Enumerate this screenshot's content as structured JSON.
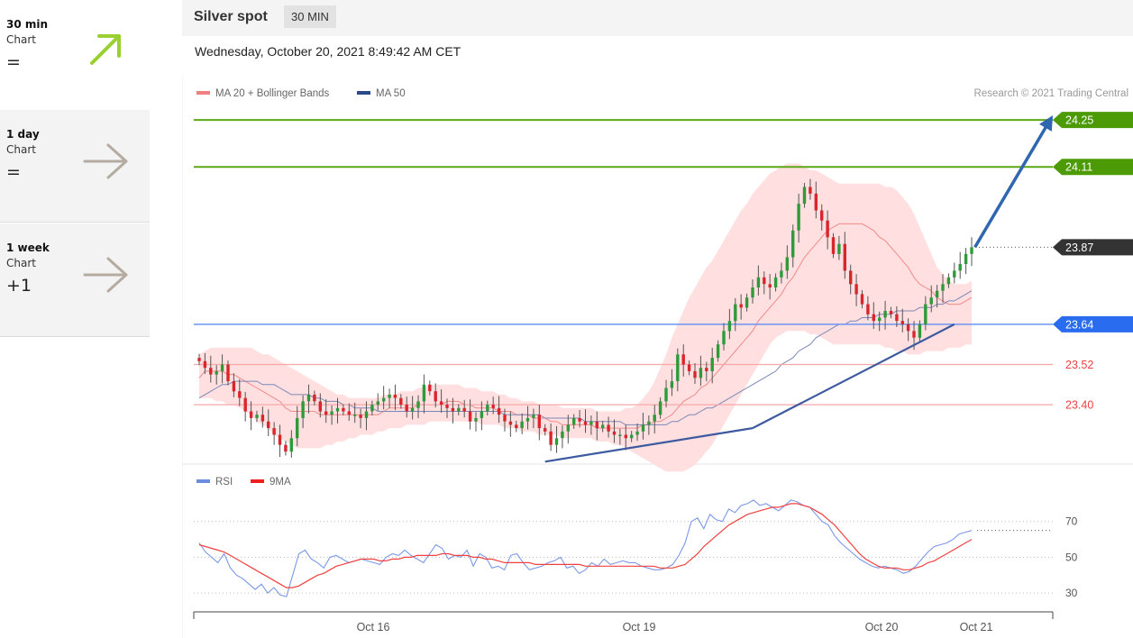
{
  "sidebar": {
    "items": [
      {
        "name": "30 min",
        "sub": "Chart",
        "symbol": "=",
        "arrow_icon": "arrow-up-right-icon",
        "color": "#9ad030"
      },
      {
        "name": "1 day",
        "sub": "Chart",
        "symbol": "=",
        "arrow_icon": "arrow-right-icon",
        "color": "#b4aba1"
      },
      {
        "name": "1 week",
        "sub": "Chart",
        "symbol": "+1",
        "arrow_icon": "arrow-right-icon",
        "color": "#b4aba1"
      }
    ]
  },
  "header": {
    "ticker": "Silver spot",
    "timeframe": "30 MIN"
  },
  "timestamp": "Wednesday, October 20, 2021 8:49:42 AM CET",
  "chart_data": [
    {
      "type": "candlestick",
      "legend": [
        {
          "label": "MA 20 + Bollinger Bands",
          "color": "#f08080"
        },
        {
          "label": "MA 50",
          "color": "#2b4a8c"
        }
      ],
      "copyright": "Research © 2021 Trading Central",
      "x_tick_labels": [
        "Oct 16",
        "Oct 19",
        "Oct 20",
        "Oct 21"
      ],
      "y_range": [
        23.22,
        24.28
      ],
      "levels": [
        {
          "value": 24.25,
          "label": "24.25",
          "kind": "target",
          "color": "#4c9a06"
        },
        {
          "value": 24.11,
          "label": "24.11",
          "kind": "resistance",
          "color": "#4c9a06"
        },
        {
          "value": 23.87,
          "label": "23.87",
          "kind": "last",
          "color": "#333333"
        },
        {
          "value": 23.64,
          "label": "23.64",
          "kind": "pivot",
          "color": "#2a6cf0"
        },
        {
          "value": 23.52,
          "label": "23.52",
          "kind": "support",
          "color": "#f07070"
        },
        {
          "value": 23.4,
          "label": "23.40",
          "kind": "support",
          "color": "#f07070"
        }
      ],
      "close": [
        23.53,
        23.51,
        23.49,
        23.5,
        23.52,
        23.47,
        23.44,
        23.42,
        23.38,
        23.36,
        23.37,
        23.35,
        23.33,
        23.31,
        23.28,
        23.26,
        23.3,
        23.36,
        23.41,
        23.43,
        23.41,
        23.38,
        23.37,
        23.38,
        23.39,
        23.38,
        23.37,
        23.37,
        23.36,
        23.38,
        23.4,
        23.41,
        23.42,
        23.43,
        23.42,
        23.4,
        23.38,
        23.39,
        23.41,
        23.46,
        23.44,
        23.41,
        23.4,
        23.39,
        23.38,
        23.39,
        23.38,
        23.35,
        23.36,
        23.38,
        23.4,
        23.39,
        23.37,
        23.35,
        23.34,
        23.33,
        23.35,
        23.36,
        23.37,
        23.33,
        23.32,
        23.28,
        23.3,
        23.32,
        23.34,
        23.36,
        23.35,
        23.34,
        23.35,
        23.33,
        23.34,
        23.32,
        23.31,
        23.31,
        23.3,
        23.31,
        23.32,
        23.34,
        23.35,
        23.37,
        23.41,
        23.45,
        23.47,
        23.55,
        23.52,
        23.5,
        23.48,
        23.51,
        23.5,
        23.54,
        23.58,
        23.62,
        23.65,
        23.7,
        23.69,
        23.72,
        23.75,
        23.78,
        23.76,
        23.75,
        23.78,
        23.8,
        23.84,
        23.92,
        24.0,
        24.05,
        24.03,
        23.98,
        23.95,
        23.9,
        23.85,
        23.88,
        23.8,
        23.76,
        23.73,
        23.7,
        23.67,
        23.65,
        23.66,
        23.68,
        23.67,
        23.65,
        23.64,
        23.62,
        23.6,
        23.64,
        23.7,
        23.72,
        23.74,
        23.76,
        23.78,
        23.8,
        23.82,
        23.85,
        23.87
      ],
      "ma20": [
        23.48,
        23.5,
        23.5,
        23.5,
        23.5,
        23.49,
        23.49,
        23.48,
        23.47,
        23.46,
        23.45,
        23.44,
        23.43,
        23.42,
        23.41,
        23.39,
        23.38,
        23.38,
        23.38,
        23.38,
        23.38,
        23.37,
        23.37,
        23.37,
        23.37,
        23.37,
        23.37,
        23.37,
        23.37,
        23.37,
        23.37,
        23.37,
        23.38,
        23.39,
        23.39,
        23.39,
        23.39,
        23.39,
        23.4,
        23.4,
        23.4,
        23.4,
        23.4,
        23.41,
        23.41,
        23.41,
        23.4,
        23.4,
        23.39,
        23.39,
        23.39,
        23.39,
        23.38,
        23.38,
        23.38,
        23.37,
        23.37,
        23.37,
        23.36,
        23.36,
        23.36,
        23.35,
        23.35,
        23.34,
        23.34,
        23.34,
        23.34,
        23.34,
        23.34,
        23.33,
        23.33,
        23.33,
        23.33,
        23.33,
        23.33,
        23.33,
        23.33,
        23.34,
        23.34,
        23.35,
        23.35,
        23.36,
        23.37,
        23.39,
        23.41,
        23.42,
        23.43,
        23.45,
        23.46,
        23.48,
        23.5,
        23.52,
        23.54,
        23.56,
        23.58,
        23.6,
        23.62,
        23.65,
        23.67,
        23.69,
        23.71,
        23.73,
        23.76,
        23.78,
        23.81,
        23.84,
        23.86,
        23.88,
        23.9,
        23.92,
        23.93,
        23.94,
        23.94,
        23.94,
        23.94,
        23.94,
        23.93,
        23.92,
        23.9,
        23.89,
        23.87,
        23.85,
        23.83,
        23.81,
        23.78,
        23.76,
        23.75,
        23.74,
        23.72,
        23.71,
        23.7,
        23.7,
        23.7,
        23.71,
        23.72
      ],
      "ma50": [
        23.42,
        23.43,
        23.44,
        23.45,
        23.46,
        23.46,
        23.47,
        23.47,
        23.47,
        23.47,
        23.47,
        23.46,
        23.46,
        23.46,
        23.45,
        23.44,
        23.43,
        23.43,
        23.43,
        23.43,
        23.42,
        23.42,
        23.41,
        23.41,
        23.41,
        23.4,
        23.4,
        23.39,
        23.39,
        23.39,
        23.39,
        23.38,
        23.38,
        23.38,
        23.38,
        23.38,
        23.38,
        23.38,
        23.38,
        23.38,
        23.38,
        23.38,
        23.38,
        23.38,
        23.38,
        23.38,
        23.38,
        23.38,
        23.38,
        23.38,
        23.38,
        23.38,
        23.38,
        23.37,
        23.37,
        23.37,
        23.37,
        23.37,
        23.37,
        23.37,
        23.36,
        23.36,
        23.36,
        23.36,
        23.36,
        23.36,
        23.36,
        23.35,
        23.35,
        23.35,
        23.35,
        23.35,
        23.35,
        23.35,
        23.34,
        23.34,
        23.34,
        23.34,
        23.34,
        23.34,
        23.34,
        23.34,
        23.35,
        23.35,
        23.36,
        23.37,
        23.37,
        23.38,
        23.39,
        23.39,
        23.4,
        23.41,
        23.42,
        23.43,
        23.44,
        23.45,
        23.46,
        23.47,
        23.48,
        23.49,
        23.5,
        23.52,
        23.53,
        23.54,
        23.56,
        23.57,
        23.58,
        23.6,
        23.61,
        23.62,
        23.63,
        23.64,
        23.64,
        23.65,
        23.65,
        23.66,
        23.66,
        23.66,
        23.67,
        23.67,
        23.67,
        23.68,
        23.68,
        23.68,
        23.68,
        23.69,
        23.69,
        23.69,
        23.7,
        23.7,
        23.71,
        23.71,
        23.72,
        23.73,
        23.74
      ],
      "bb_upper": [
        23.55,
        23.56,
        23.57,
        23.57,
        23.57,
        23.57,
        23.57,
        23.57,
        23.57,
        23.57,
        23.56,
        23.55,
        23.55,
        23.54,
        23.53,
        23.52,
        23.51,
        23.5,
        23.49,
        23.48,
        23.47,
        23.46,
        23.45,
        23.44,
        23.43,
        23.43,
        23.42,
        23.42,
        23.42,
        23.42,
        23.42,
        23.42,
        23.43,
        23.43,
        23.43,
        23.44,
        23.44,
        23.44,
        23.45,
        23.45,
        23.46,
        23.46,
        23.46,
        23.46,
        23.46,
        23.46,
        23.45,
        23.45,
        23.45,
        23.44,
        23.44,
        23.44,
        23.43,
        23.43,
        23.42,
        23.42,
        23.41,
        23.41,
        23.41,
        23.4,
        23.4,
        23.4,
        23.4,
        23.39,
        23.39,
        23.39,
        23.39,
        23.39,
        23.39,
        23.38,
        23.38,
        23.38,
        23.38,
        23.38,
        23.39,
        23.39,
        23.4,
        23.42,
        23.44,
        23.47,
        23.51,
        23.55,
        23.6,
        23.64,
        23.68,
        23.72,
        23.75,
        23.78,
        23.81,
        23.83,
        23.86,
        23.89,
        23.92,
        23.95,
        23.98,
        24.0,
        24.03,
        24.05,
        24.07,
        24.09,
        24.1,
        24.11,
        24.12,
        24.12,
        24.12,
        24.11,
        24.1,
        24.1,
        24.09,
        24.08,
        24.07,
        24.06,
        24.06,
        24.06,
        24.06,
        24.06,
        24.06,
        24.06,
        24.06,
        24.05,
        24.05,
        24.04,
        24.02,
        24.0,
        23.97,
        23.93,
        23.89,
        23.85,
        23.81,
        23.79,
        23.77,
        23.76,
        23.76,
        23.76,
        23.77
      ],
      "bb_lower": [
        23.42,
        23.42,
        23.42,
        23.41,
        23.41,
        23.4,
        23.4,
        23.39,
        23.38,
        23.37,
        23.35,
        23.34,
        23.33,
        23.31,
        23.3,
        23.29,
        23.28,
        23.27,
        23.27,
        23.27,
        23.27,
        23.27,
        23.28,
        23.28,
        23.29,
        23.29,
        23.3,
        23.3,
        23.31,
        23.31,
        23.31,
        23.32,
        23.32,
        23.33,
        23.33,
        23.33,
        23.34,
        23.34,
        23.34,
        23.34,
        23.35,
        23.35,
        23.35,
        23.35,
        23.35,
        23.35,
        23.35,
        23.35,
        23.35,
        23.34,
        23.34,
        23.34,
        23.34,
        23.33,
        23.33,
        23.33,
        23.32,
        23.32,
        23.32,
        23.31,
        23.31,
        23.31,
        23.31,
        23.3,
        23.3,
        23.3,
        23.3,
        23.3,
        23.3,
        23.29,
        23.29,
        23.29,
        23.28,
        23.28,
        23.27,
        23.26,
        23.25,
        23.24,
        23.23,
        23.22,
        23.21,
        23.2,
        23.2,
        23.2,
        23.2,
        23.21,
        23.22,
        23.24,
        23.26,
        23.28,
        23.31,
        23.34,
        23.37,
        23.4,
        23.43,
        23.46,
        23.49,
        23.52,
        23.55,
        23.58,
        23.6,
        23.61,
        23.62,
        23.62,
        23.62,
        23.62,
        23.61,
        23.61,
        23.6,
        23.59,
        23.58,
        23.58,
        23.58,
        23.58,
        23.58,
        23.58,
        23.58,
        23.58,
        23.58,
        23.57,
        23.57,
        23.56,
        23.56,
        23.55,
        23.55,
        23.55,
        23.56,
        23.56,
        23.56,
        23.56,
        23.57,
        23.57,
        23.57,
        23.58,
        23.58
      ],
      "trendlines": [
        {
          "from": [
            60,
            23.23
          ],
          "to": [
            96,
            23.33
          ],
          "color": "#3d5aa0"
        },
        {
          "from": [
            96,
            23.33
          ],
          "to": [
            131,
            23.64
          ],
          "color": "#3d5aa0"
        }
      ],
      "projection": {
        "from": [
          133,
          23.87
        ],
        "to": [
          148,
          24.25
        ],
        "color": "#2f66b0"
      }
    },
    {
      "type": "line",
      "legend": [
        {
          "label": "RSI",
          "color": "#6b8de0"
        },
        {
          "label": "9MA",
          "color": "#f02020"
        }
      ],
      "y_ticks": [
        "70",
        "50",
        "30"
      ],
      "y_range": [
        24,
        86
      ],
      "rsi": [
        58,
        53,
        50,
        47,
        52,
        44,
        40,
        38,
        35,
        32,
        35,
        30,
        33,
        29,
        28,
        40,
        52,
        54,
        49,
        47,
        44,
        50,
        51,
        49,
        47,
        48,
        49,
        48,
        47,
        46,
        50,
        52,
        51,
        54,
        51,
        49,
        47,
        52,
        57,
        55,
        49,
        51,
        50,
        54,
        45,
        52,
        50,
        44,
        45,
        43,
        51,
        52,
        47,
        43,
        44,
        45,
        47,
        48,
        50,
        44,
        45,
        41,
        43,
        47,
        45,
        49,
        46,
        47,
        48,
        47,
        47,
        45,
        44,
        43,
        43,
        44,
        46,
        51,
        58,
        70,
        72,
        66,
        74,
        71,
        70,
        77,
        75,
        79,
        80,
        82,
        79,
        80,
        78,
        76,
        79,
        82,
        81,
        79,
        78,
        74,
        70,
        68,
        62,
        58,
        55,
        52,
        49,
        47,
        45,
        44,
        45,
        44,
        43,
        41,
        42,
        45,
        49,
        53,
        56,
        57,
        58,
        60,
        63,
        64,
        65
      ],
      "rsi_9ma": [
        57,
        56,
        55,
        54,
        53,
        51,
        49,
        47,
        45,
        43,
        41,
        39,
        37,
        35,
        33,
        33,
        34,
        36,
        38,
        40,
        41,
        43,
        45,
        46,
        47,
        48,
        49,
        49,
        49,
        48,
        48,
        49,
        49,
        50,
        50,
        51,
        51,
        51,
        51,
        52,
        52,
        51,
        51,
        51,
        50,
        50,
        49,
        49,
        48,
        47,
        47,
        47,
        47,
        47,
        46,
        46,
        46,
        46,
        46,
        46,
        46,
        46,
        45,
        45,
        45,
        45,
        45,
        45,
        45,
        45,
        45,
        45,
        45,
        45,
        44,
        44,
        44,
        45,
        46,
        49,
        52,
        56,
        59,
        62,
        65,
        68,
        70,
        72,
        74,
        75,
        76,
        77,
        78,
        78,
        79,
        80,
        80,
        79,
        78,
        76,
        74,
        71,
        68,
        64,
        60,
        56,
        52,
        49,
        47,
        45,
        44,
        44,
        44,
        43,
        43,
        44,
        45,
        47,
        48,
        50,
        52,
        54,
        56,
        58,
        60
      ]
    }
  ]
}
